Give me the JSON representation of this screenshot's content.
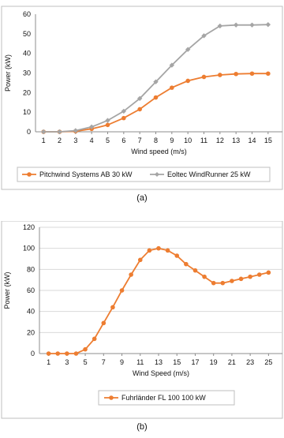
{
  "chart_data": [
    {
      "type": "line",
      "panel_label": "(a)",
      "xlabel": "Wind speed (m/s)",
      "ylabel": "Power (kW)",
      "x": [
        1,
        2,
        3,
        4,
        5,
        6,
        7,
        8,
        9,
        10,
        11,
        12,
        13,
        14,
        15
      ],
      "xlim": [
        0.5,
        15.5
      ],
      "ylim": [
        0,
        60
      ],
      "yticks": [
        0,
        10,
        20,
        30,
        40,
        50,
        60
      ],
      "grid": false,
      "legend_position": "bottom",
      "series": [
        {
          "name": "Pitchwind Systems AB 30 kW",
          "color": "#ED7D31",
          "values": [
            0,
            0,
            0.3,
            1.5,
            3.5,
            7,
            11.5,
            17.5,
            22.5,
            26,
            28,
            29,
            29.5,
            29.7,
            29.7
          ]
        },
        {
          "name": "Eoltec WindRunner 25 kW",
          "color": "#A5A5A5",
          "values": [
            0,
            0,
            0.6,
            2.5,
            5.8,
            10.5,
            17,
            25.5,
            34,
            42,
            49,
            54,
            54.5,
            54.5,
            54.7
          ]
        }
      ]
    },
    {
      "type": "line",
      "panel_label": "(b)",
      "xlabel": "Wind Speed (m/s)",
      "ylabel": "Power (kW)",
      "x": [
        1,
        2,
        3,
        4,
        5,
        6,
        7,
        8,
        9,
        10,
        11,
        12,
        13,
        14,
        15,
        16,
        17,
        18,
        19,
        20,
        21,
        22,
        23,
        24,
        25
      ],
      "xticks": [
        1,
        3,
        5,
        7,
        9,
        11,
        13,
        15,
        17,
        19,
        21,
        23,
        25
      ],
      "xlim": [
        0,
        26
      ],
      "ylim": [
        0,
        120
      ],
      "yticks": [
        0,
        20,
        40,
        60,
        80,
        100,
        120
      ],
      "grid": true,
      "legend_position": "bottom",
      "series": [
        {
          "name": "Fuhrländer FL 100 100 kW",
          "color": "#ED7D31",
          "values": [
            0,
            0,
            0,
            0,
            4,
            14,
            29,
            44,
            60,
            75,
            89,
            98,
            100,
            98,
            93,
            85,
            79,
            73,
            67,
            67,
            69,
            71,
            73,
            75,
            77
          ]
        }
      ]
    }
  ]
}
